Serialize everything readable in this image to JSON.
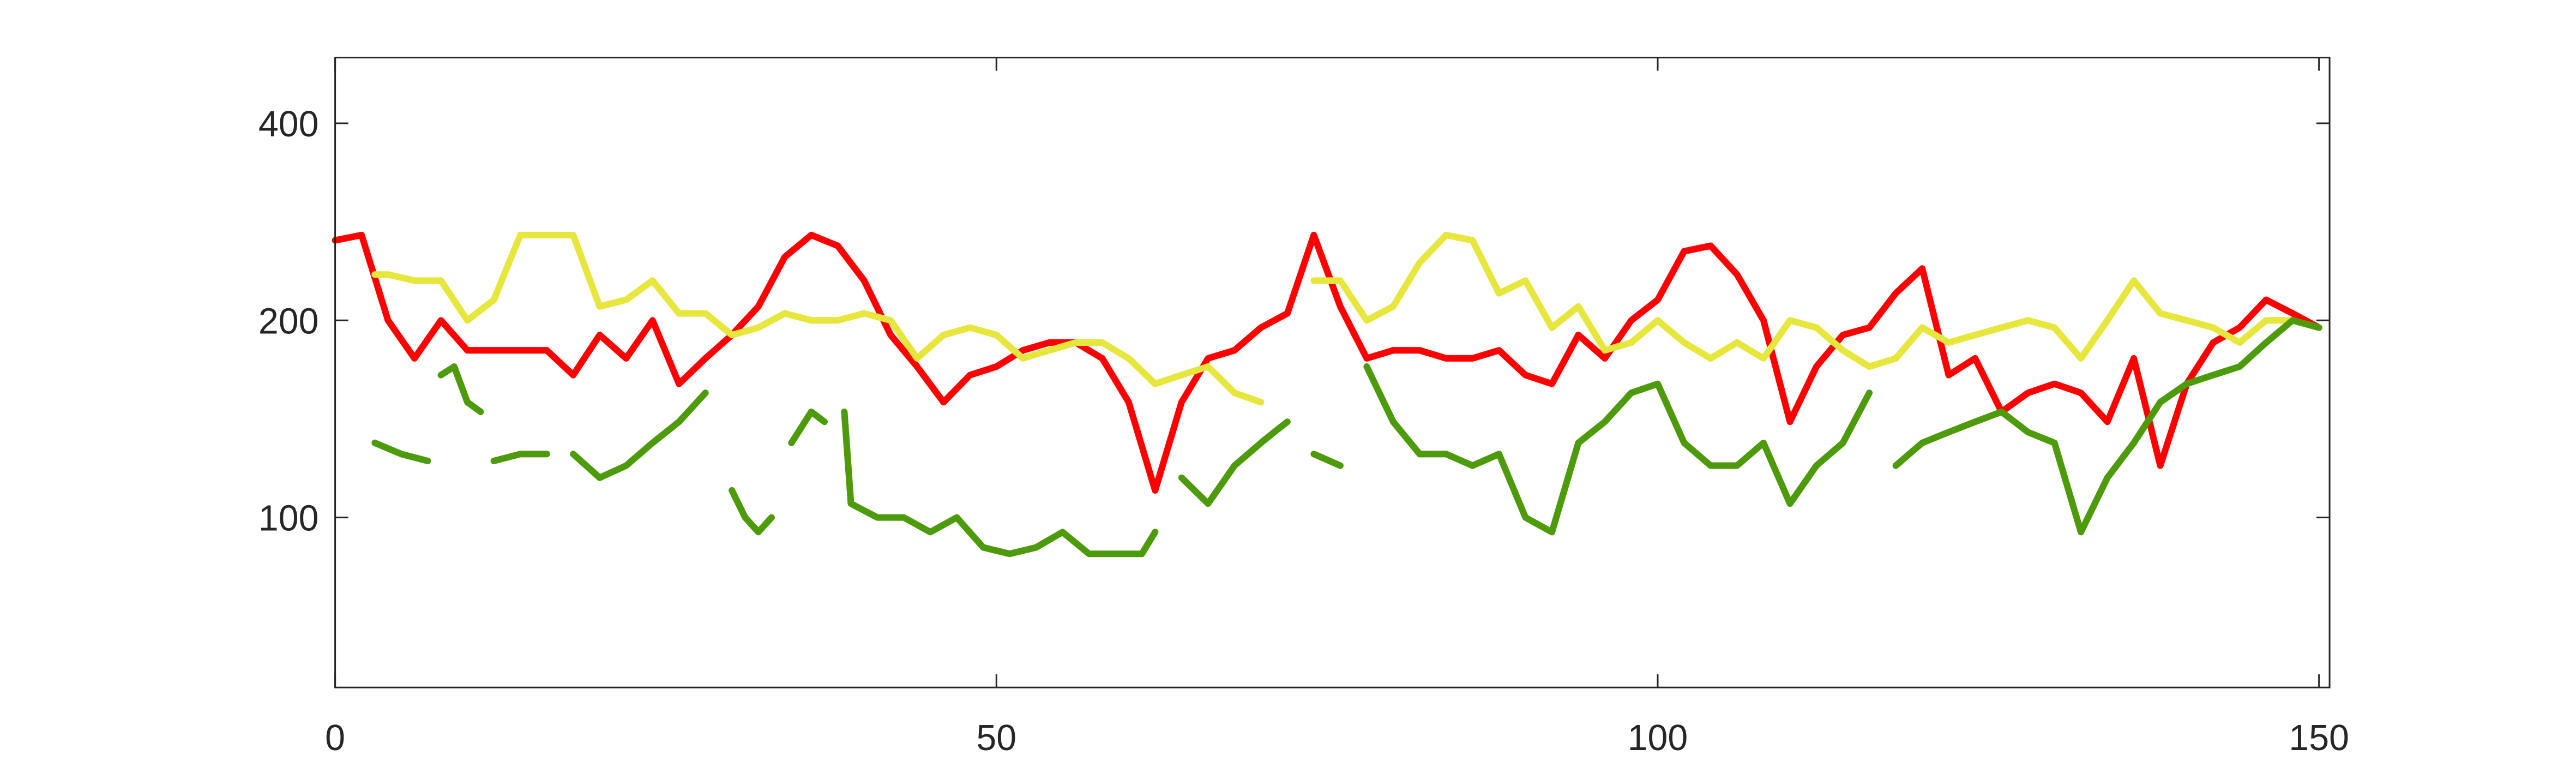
{
  "chart_data": {
    "type": "line",
    "yscale": "log",
    "xlim": [
      0,
      150.8
    ],
    "xticks": [
      0,
      50,
      100,
      150
    ],
    "ylim": [
      55,
      504
    ],
    "yticks": [
      100,
      200,
      400
    ],
    "grid": false,
    "series": [
      {
        "color": "#ff0000",
        "x": [
          0,
          2,
          4,
          6,
          8,
          10,
          12,
          14,
          16,
          18,
          20,
          22,
          24,
          26,
          28,
          30,
          32,
          34,
          36,
          38,
          40,
          42,
          44,
          46,
          48,
          50,
          52,
          54,
          56,
          58,
          60,
          62,
          64,
          66,
          68,
          70,
          72,
          74,
          76,
          78,
          80,
          82,
          84,
          86,
          88,
          90,
          92,
          94,
          96,
          98,
          100,
          102,
          104,
          106,
          108,
          110,
          112,
          114,
          116,
          118,
          120,
          122,
          124,
          126,
          128,
          130,
          132,
          134,
          136,
          138,
          140,
          142,
          144,
          146,
          148,
          150
        ],
        "values": [
          265,
          270,
          200,
          175,
          200,
          180,
          180,
          180,
          180,
          165,
          190,
          175,
          200,
          160,
          175,
          190,
          210,
          250,
          270,
          260,
          230,
          190,
          170,
          150,
          165,
          170,
          180,
          185,
          185,
          175,
          150,
          110,
          150,
          175,
          180,
          195,
          205,
          270,
          210,
          175,
          180,
          180,
          175,
          175,
          180,
          165,
          160,
          190,
          175,
          200,
          215,
          255,
          260,
          235,
          200,
          140,
          170,
          190,
          195,
          220,
          240,
          165,
          175,
          145,
          155,
          160,
          155,
          140,
          175,
          120,
          160,
          185,
          195,
          215,
          205,
          195
        ]
      },
      {
        "color": "#e6e63c",
        "x": [
          3,
          4,
          6,
          8,
          10,
          12,
          14,
          16,
          18,
          20,
          22,
          24,
          26,
          28,
          30,
          32,
          34,
          36,
          38,
          40,
          42,
          44,
          46,
          48,
          50,
          52,
          54,
          56,
          58,
          60,
          62,
          64,
          66,
          68,
          70,
          72,
          74,
          76,
          78,
          80,
          82,
          84,
          86,
          88,
          90,
          92,
          94,
          96,
          98,
          100,
          102,
          104,
          106,
          108,
          110,
          112,
          114,
          116,
          118,
          120,
          122,
          124,
          126,
          128,
          130,
          132,
          134,
          136,
          138,
          140,
          142,
          144,
          146,
          148,
          150
        ],
        "values": [
          235,
          235,
          230,
          230,
          200,
          215,
          270,
          270,
          270,
          210,
          215,
          230,
          205,
          205,
          190,
          195,
          205,
          200,
          200,
          205,
          200,
          175,
          190,
          195,
          190,
          175,
          180,
          185,
          185,
          175,
          160,
          165,
          170,
          155,
          150,
          null,
          230,
          230,
          200,
          210,
          245,
          270,
          265,
          220,
          230,
          195,
          210,
          180,
          185,
          200,
          185,
          175,
          185,
          175,
          200,
          195,
          180,
          170,
          175,
          195,
          185,
          190,
          195,
          200,
          195,
          175,
          200,
          230,
          205,
          200,
          195,
          185,
          200,
          200,
          195
        ]
      },
      {
        "color": "#4d9a0a",
        "x": [
          3,
          5,
          7,
          7.5,
          8,
          9,
          10,
          11,
          11.5,
          12,
          14,
          16,
          17,
          18,
          20,
          22,
          24,
          26,
          28,
          29,
          30,
          31,
          32,
          33,
          34,
          34.5,
          36,
          37,
          38,
          38.5,
          39,
          41,
          43,
          45,
          47,
          49,
          51,
          53,
          55,
          57,
          59,
          61,
          62,
          63,
          64,
          66,
          68,
          70,
          71,
          72,
          73,
          74,
          76,
          77,
          78,
          80,
          82,
          84,
          86,
          88,
          90,
          92,
          94,
          96,
          98,
          100,
          102,
          104,
          106,
          108,
          110,
          112,
          114,
          116,
          117,
          118,
          120,
          122,
          124,
          126,
          128,
          130,
          132,
          134,
          136,
          138,
          140,
          142,
          144,
          146,
          148,
          150
        ],
        "values": [
          130,
          125,
          122,
          null,
          165,
          170,
          150,
          145,
          null,
          122,
          125,
          125,
          null,
          125,
          115,
          120,
          130,
          140,
          155,
          null,
          110,
          100,
          95,
          100,
          null,
          130,
          145,
          140,
          null,
          145,
          105,
          100,
          100,
          95,
          100,
          90,
          88,
          90,
          95,
          88,
          88,
          88,
          95,
          null,
          115,
          105,
          120,
          130,
          135,
          140,
          null,
          125,
          120,
          null,
          170,
          140,
          125,
          125,
          120,
          125,
          100,
          95,
          130,
          140,
          155,
          160,
          130,
          120,
          120,
          130,
          105,
          120,
          130,
          155,
          null,
          120,
          130,
          135,
          140,
          145,
          135,
          130,
          95,
          115,
          130,
          150,
          160,
          165,
          170,
          185,
          200,
          195
        ]
      }
    ]
  }
}
